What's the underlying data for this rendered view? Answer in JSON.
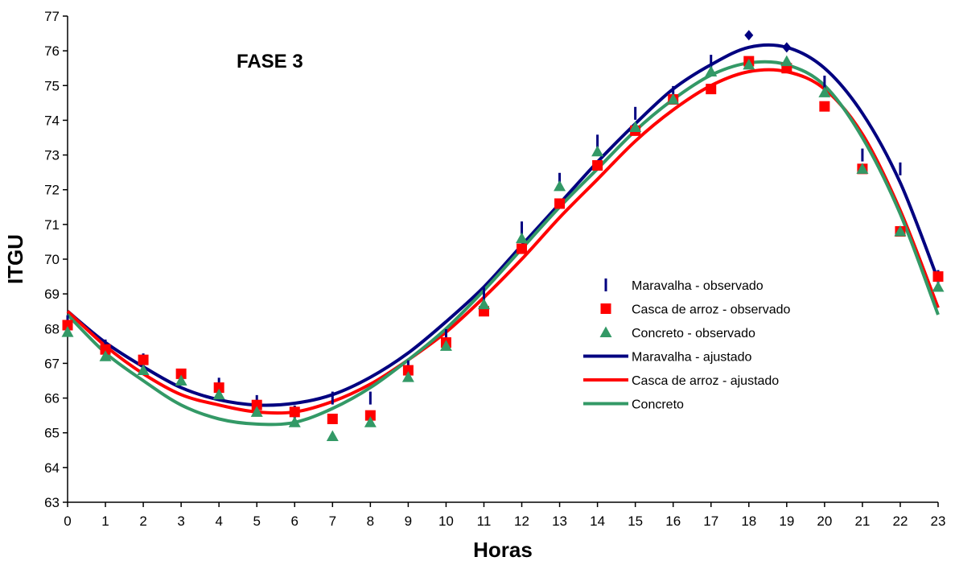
{
  "chart_data": {
    "type": "scatter",
    "annotation": "FASE 3",
    "xlabel": "Horas",
    "ylabel": "ITGU",
    "xlim": [
      0,
      23
    ],
    "ylim": [
      63,
      77
    ],
    "x_ticks": [
      0,
      1,
      2,
      3,
      4,
      5,
      6,
      7,
      8,
      9,
      10,
      11,
      12,
      13,
      14,
      15,
      16,
      17,
      18,
      19,
      20,
      21,
      22,
      23
    ],
    "y_ticks": [
      63,
      64,
      65,
      66,
      67,
      68,
      69,
      70,
      71,
      72,
      73,
      74,
      75,
      76,
      77
    ],
    "grid": false,
    "legend_position": "right",
    "series": [
      {
        "name": "Maravalha - observado",
        "kind": "points",
        "marker": "dash",
        "color": "#000080",
        "x": [
          0,
          1,
          2,
          3,
          4,
          5,
          6,
          7,
          8,
          9,
          10,
          11,
          12,
          13,
          14,
          15,
          16,
          17,
          18,
          19,
          20,
          21,
          22,
          23
        ],
        "y": [
          68.2,
          67.5,
          67.1,
          66.6,
          66.4,
          65.9,
          65.6,
          66.0,
          66.0,
          66.9,
          67.8,
          69.0,
          70.9,
          72.3,
          73.4,
          74.2,
          74.8,
          75.7,
          76.45,
          76.1,
          75.1,
          73.0,
          72.6,
          69.5
        ],
        "marker_by_x": {
          "18": "diamond",
          "19": "diamond"
        }
      },
      {
        "name": "Casca de arroz - observado",
        "kind": "points",
        "marker": "square",
        "color": "#ff0000",
        "x": [
          0,
          1,
          2,
          3,
          4,
          5,
          6,
          7,
          8,
          9,
          10,
          11,
          12,
          13,
          14,
          15,
          16,
          17,
          18,
          19,
          20,
          21,
          22,
          23
        ],
        "y": [
          68.1,
          67.4,
          67.1,
          66.7,
          66.3,
          65.8,
          65.6,
          65.4,
          65.5,
          66.8,
          67.6,
          68.5,
          70.3,
          71.6,
          72.7,
          73.7,
          74.6,
          74.9,
          75.7,
          75.5,
          74.4,
          72.6,
          70.8,
          69.5
        ]
      },
      {
        "name": "Concreto - observado",
        "kind": "points",
        "marker": "triangle",
        "color": "#339966",
        "x": [
          0,
          1,
          2,
          3,
          4,
          5,
          6,
          7,
          8,
          9,
          10,
          11,
          12,
          13,
          14,
          15,
          16,
          17,
          18,
          19,
          20,
          21,
          22,
          23
        ],
        "y": [
          67.9,
          67.2,
          66.8,
          66.5,
          66.1,
          65.6,
          65.3,
          64.9,
          65.3,
          66.6,
          67.5,
          68.7,
          70.6,
          72.1,
          73.1,
          73.8,
          74.6,
          75.4,
          75.6,
          75.7,
          74.8,
          72.6,
          70.8,
          69.2
        ]
      },
      {
        "name": "Maravalha - ajustado",
        "kind": "line",
        "color": "#000080",
        "x": [
          0,
          1,
          2,
          3,
          4,
          5,
          6,
          7,
          8,
          9,
          10,
          11,
          12,
          13,
          14,
          15,
          16,
          17,
          18,
          19,
          20,
          21,
          22,
          23
        ],
        "y": [
          68.5,
          67.6,
          66.9,
          66.3,
          65.95,
          65.8,
          65.85,
          66.1,
          66.6,
          67.3,
          68.2,
          69.2,
          70.4,
          71.6,
          72.8,
          73.9,
          74.9,
          75.6,
          76.1,
          76.1,
          75.5,
          74.2,
          72.2,
          69.4
        ]
      },
      {
        "name": "Casca de arroz - ajustado",
        "kind": "line",
        "color": "#ff0000",
        "x": [
          0,
          1,
          2,
          3,
          4,
          5,
          6,
          7,
          8,
          9,
          10,
          11,
          12,
          13,
          14,
          15,
          16,
          17,
          18,
          19,
          20,
          21,
          22,
          23
        ],
        "y": [
          68.5,
          67.5,
          66.7,
          66.1,
          65.8,
          65.6,
          65.6,
          65.9,
          66.4,
          67.1,
          67.9,
          68.9,
          70.0,
          71.2,
          72.3,
          73.4,
          74.3,
          75.0,
          75.4,
          75.4,
          74.9,
          73.6,
          71.4,
          68.6
        ]
      },
      {
        "name": "Concreto",
        "kind": "line",
        "color": "#339966",
        "x": [
          0,
          1,
          2,
          3,
          4,
          5,
          6,
          7,
          8,
          9,
          10,
          11,
          12,
          13,
          14,
          15,
          16,
          17,
          18,
          19,
          20,
          21,
          22,
          23
        ],
        "y": [
          68.4,
          67.3,
          66.5,
          65.8,
          65.4,
          65.25,
          65.3,
          65.7,
          66.3,
          67.1,
          68.0,
          69.1,
          70.3,
          71.5,
          72.6,
          73.7,
          74.6,
          75.3,
          75.65,
          75.6,
          75.0,
          73.5,
          71.3,
          68.4
        ]
      }
    ]
  }
}
